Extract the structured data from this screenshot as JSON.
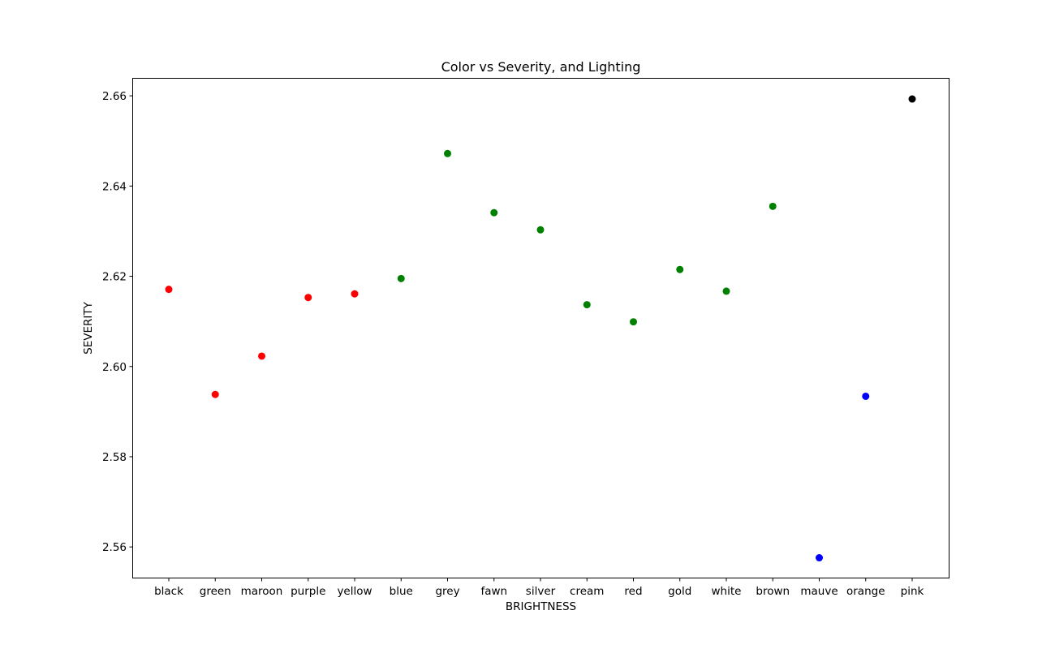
{
  "chart_data": {
    "type": "scatter",
    "title": "Color vs Severity, and Lighting",
    "xlabel": "BRIGHTNESS",
    "ylabel": "SEVERITY",
    "categories": [
      "black",
      "green",
      "maroon",
      "purple",
      "yellow",
      "blue",
      "grey",
      "fawn",
      "silver",
      "cream",
      "red",
      "gold",
      "white",
      "brown",
      "mauve",
      "orange",
      "pink"
    ],
    "values": [
      2.6171,
      2.5938,
      2.6023,
      2.6153,
      2.6161,
      2.6195,
      2.6472,
      2.6341,
      2.6303,
      2.6137,
      2.6099,
      2.6215,
      2.6167,
      2.6355,
      2.5576,
      2.5934,
      2.6593
    ],
    "point_colors": [
      "#ff0000",
      "#ff0000",
      "#ff0000",
      "#ff0000",
      "#ff0000",
      "#008000",
      "#008000",
      "#008000",
      "#008000",
      "#008000",
      "#008000",
      "#008000",
      "#008000",
      "#008000",
      "#0000ff",
      "#0000ff",
      "#000000"
    ],
    "ylim": [
      2.5532,
      2.6638
    ],
    "yticks": [
      2.56,
      2.58,
      2.6,
      2.62,
      2.64,
      2.66
    ],
    "ytick_labels": [
      "2.56",
      "2.58",
      "2.60",
      "2.62",
      "2.64",
      "2.66"
    ],
    "grid": false,
    "legend": "none"
  }
}
